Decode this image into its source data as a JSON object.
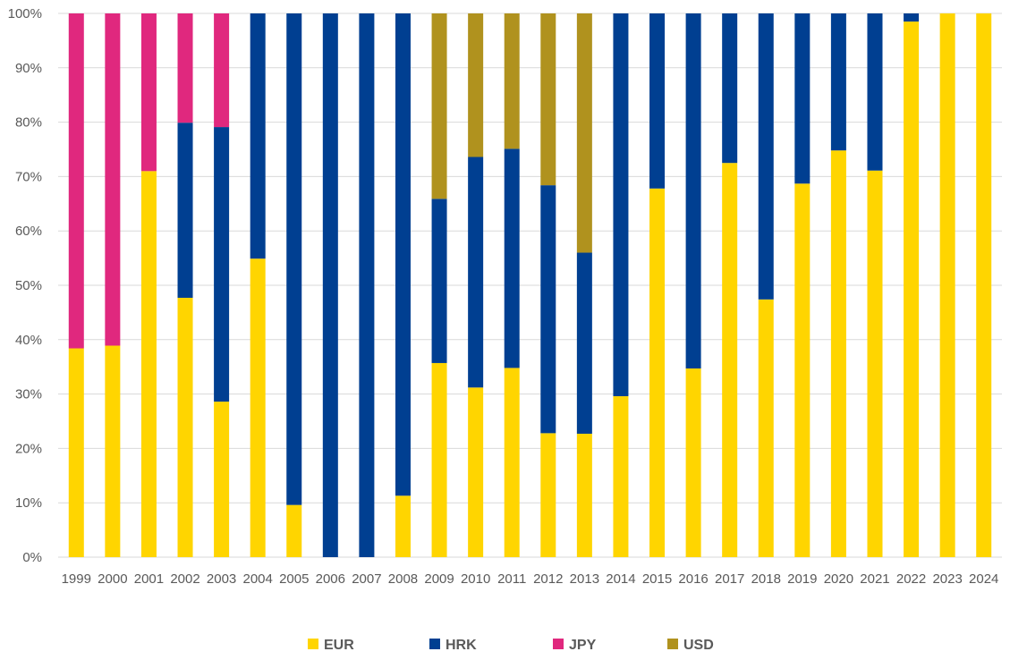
{
  "chart_data": {
    "type": "bar",
    "stacked": true,
    "title": "",
    "xlabel": "",
    "ylabel": "",
    "ylim": [
      0,
      100
    ],
    "y_ticks": [
      "0%",
      "10%",
      "20%",
      "30%",
      "40%",
      "50%",
      "60%",
      "70%",
      "80%",
      "90%",
      "100%"
    ],
    "grid": true,
    "legend_position": "bottom",
    "categories": [
      "1999",
      "2000",
      "2001",
      "2002",
      "2003",
      "2004",
      "2005",
      "2006",
      "2007",
      "2008",
      "2009",
      "2010",
      "2011",
      "2012",
      "2013",
      "2014",
      "2015",
      "2016",
      "2017",
      "2018",
      "2019",
      "2020",
      "2021",
      "2022",
      "2023",
      "2024"
    ],
    "series": [
      {
        "name": "EUR",
        "color": "#FFD500",
        "values": [
          38.4,
          38.9,
          71.0,
          47.7,
          28.6,
          54.9,
          9.6,
          0,
          0,
          11.3,
          35.7,
          31.2,
          34.8,
          22.8,
          22.7,
          29.6,
          67.8,
          34.7,
          72.5,
          47.4,
          68.7,
          74.8,
          71.1,
          98.5,
          100,
          100
        ]
      },
      {
        "name": "HRK",
        "color": "#003F91",
        "values": [
          0,
          0,
          0,
          32.2,
          50.5,
          45.1,
          90.4,
          100,
          100,
          88.7,
          30.2,
          42.4,
          40.3,
          45.6,
          33.3,
          70.4,
          32.2,
          65.3,
          27.5,
          52.6,
          31.3,
          25.2,
          28.9,
          1.5,
          0,
          0
        ]
      },
      {
        "name": "JPY",
        "color": "#E0287E",
        "values": [
          61.6,
          61.1,
          29.0,
          20.1,
          20.9,
          0,
          0,
          0,
          0,
          0,
          0,
          0,
          0,
          0,
          0,
          0,
          0,
          0,
          0,
          0,
          0,
          0,
          0,
          0,
          0,
          0
        ]
      },
      {
        "name": "USD",
        "color": "#B0921E",
        "values": [
          0,
          0,
          0,
          0,
          0,
          0,
          0,
          0,
          0,
          0,
          34.1,
          26.4,
          24.9,
          31.6,
          44.0,
          0,
          0,
          0,
          0,
          0,
          0,
          0,
          0,
          0,
          0,
          0
        ]
      }
    ]
  }
}
